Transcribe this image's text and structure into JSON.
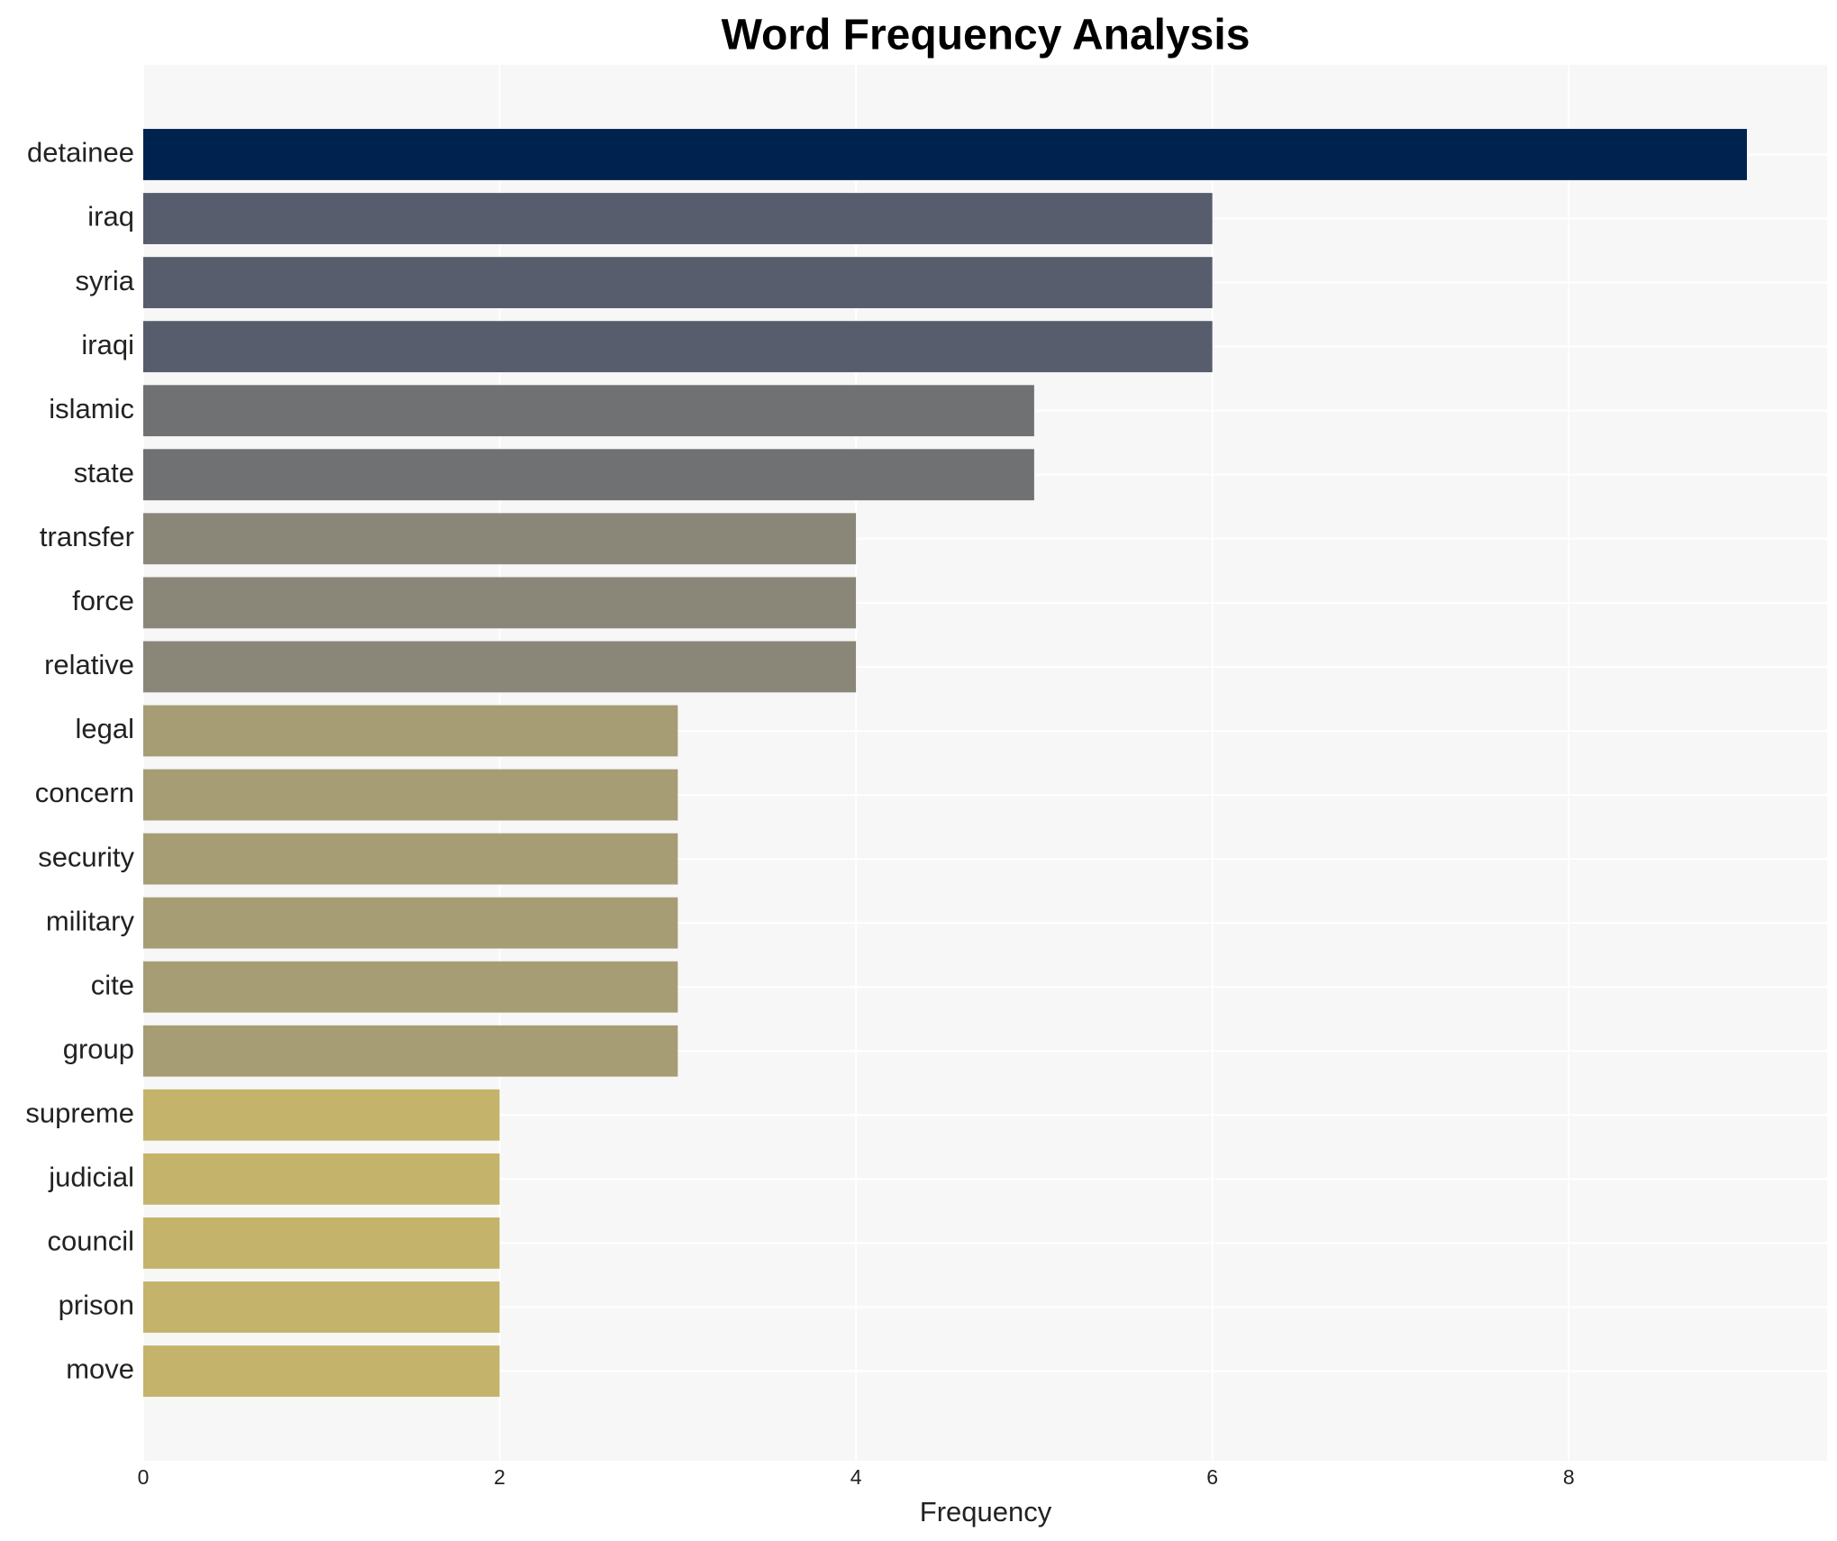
{
  "chart_data": {
    "type": "barh",
    "title": "Word Frequency Analysis",
    "xlabel": "Frequency",
    "categories": [
      "detainee",
      "iraq",
      "syria",
      "iraqi",
      "islamic",
      "state",
      "transfer",
      "force",
      "relative",
      "legal",
      "concern",
      "security",
      "military",
      "cite",
      "group",
      "supreme",
      "judicial",
      "council",
      "prison",
      "move"
    ],
    "values": [
      9,
      6,
      6,
      6,
      5,
      5,
      4,
      4,
      4,
      3,
      3,
      3,
      3,
      3,
      3,
      2,
      2,
      2,
      2,
      2
    ],
    "colors": [
      "#00224e",
      "#575d6d",
      "#575d6d",
      "#575d6d",
      "#707173",
      "#707173",
      "#8a8779",
      "#8a8779",
      "#8a8779",
      "#a69d75",
      "#a69d75",
      "#a69d75",
      "#a69d75",
      "#a69d75",
      "#a69d75",
      "#c4b36a",
      "#c4b36a",
      "#c4b36a",
      "#c4b36a",
      "#c4b36a"
    ],
    "xlim": [
      0,
      9.45
    ],
    "xticks": [
      0,
      2,
      4,
      6,
      8
    ],
    "grid": true
  }
}
